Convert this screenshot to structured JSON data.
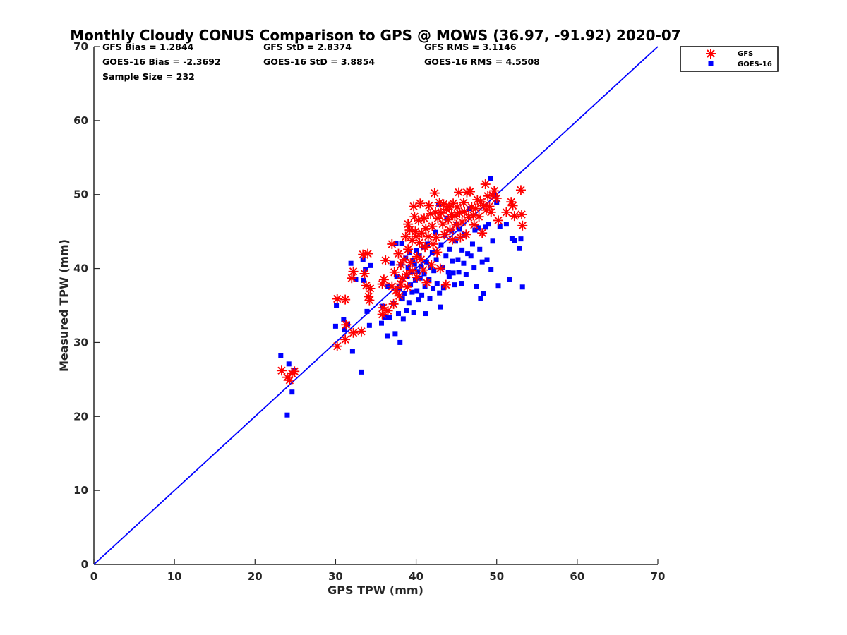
{
  "chart_data": {
    "type": "scatter",
    "title": "Monthly Cloudy CONUS Comparison to GPS @ MOWS (36.97, -91.92) 2020-07",
    "xlabel": "GPS TPW (mm)",
    "ylabel": "Measured TPW (mm)",
    "xlim": [
      0,
      70
    ],
    "ylim": [
      0,
      70
    ],
    "xticks": [
      "0",
      "10",
      "20",
      "30",
      "40",
      "50",
      "60",
      "70"
    ],
    "yticks": [
      "0",
      "10",
      "20",
      "30",
      "40",
      "50",
      "60",
      "70"
    ],
    "grid": false,
    "legend_position": "top-right outside",
    "stats": [
      [
        "GFS Bias = 1.2844",
        "GFS StD = 2.8374",
        "GFS RMS = 3.1146"
      ],
      [
        "GOES-16 Bias = -2.3692",
        "GOES-16 StD = 3.8854",
        "GOES-16 RMS = 4.5508"
      ],
      [
        "Sample Size = 232"
      ]
    ],
    "reference_line": {
      "x": [
        0,
        70
      ],
      "y": [
        0,
        70
      ],
      "color": "#0000ff"
    },
    "series": [
      {
        "name": "GFS",
        "marker": "asterisk",
        "color": "#ff0000",
        "points": [
          [
            23.3,
            26.2
          ],
          [
            24.0,
            25.3
          ],
          [
            24.3,
            24.9
          ],
          [
            24.6,
            25.8
          ],
          [
            24.9,
            26.1
          ],
          [
            30.2,
            29.5
          ],
          [
            30.2,
            35.9
          ],
          [
            31.2,
            30.4
          ],
          [
            31.2,
            35.8
          ],
          [
            31.3,
            32.4
          ],
          [
            32.0,
            38.7
          ],
          [
            32.2,
            31.3
          ],
          [
            32.2,
            39.6
          ],
          [
            33.2,
            31.5
          ],
          [
            33.4,
            41.9
          ],
          [
            33.6,
            39.3
          ],
          [
            33.8,
            37.7
          ],
          [
            34.0,
            42.0
          ],
          [
            34.1,
            36.2
          ],
          [
            34.2,
            35.7
          ],
          [
            34.3,
            37.3
          ],
          [
            35.8,
            37.9
          ],
          [
            35.8,
            33.8
          ],
          [
            35.9,
            34.7
          ],
          [
            36.0,
            38.5
          ],
          [
            36.2,
            41.1
          ],
          [
            36.5,
            34.3
          ],
          [
            37.0,
            43.3
          ],
          [
            37.0,
            37.6
          ],
          [
            37.2,
            35.2
          ],
          [
            37.3,
            39.5
          ],
          [
            37.5,
            37.0
          ],
          [
            37.8,
            42.0
          ],
          [
            37.9,
            36.3
          ],
          [
            38.1,
            40.5
          ],
          [
            38.1,
            37.9
          ],
          [
            38.3,
            38.7
          ],
          [
            38.5,
            41.2
          ],
          [
            38.7,
            44.3
          ],
          [
            38.8,
            39.2
          ],
          [
            38.9,
            37.5
          ],
          [
            39.0,
            46.0
          ],
          [
            39.0,
            42.6
          ],
          [
            39.2,
            45.2
          ],
          [
            39.3,
            40.8
          ],
          [
            39.5,
            43.8
          ],
          [
            39.5,
            39.7
          ],
          [
            39.7,
            48.4
          ],
          [
            39.8,
            47.0
          ],
          [
            39.9,
            45.0
          ],
          [
            40.0,
            44.3
          ],
          [
            40.1,
            41.6
          ],
          [
            40.1,
            38.8
          ],
          [
            40.3,
            46.5
          ],
          [
            40.4,
            43.5
          ],
          [
            40.5,
            48.8
          ],
          [
            40.6,
            41.2
          ],
          [
            40.7,
            44.8
          ],
          [
            40.9,
            39.8
          ],
          [
            41.0,
            46.8
          ],
          [
            41.1,
            42.9
          ],
          [
            41.2,
            45.4
          ],
          [
            41.3,
            38.1
          ],
          [
            41.5,
            44.3
          ],
          [
            41.6,
            48.5
          ],
          [
            41.8,
            47.4
          ],
          [
            41.9,
            40.5
          ],
          [
            42.0,
            45.7
          ],
          [
            42.1,
            43.3
          ],
          [
            42.3,
            50.2
          ],
          [
            42.4,
            47.6
          ],
          [
            42.5,
            44.2
          ],
          [
            42.6,
            42.2
          ],
          [
            42.7,
            46.8
          ],
          [
            42.9,
            48.9
          ],
          [
            43.0,
            40.0
          ],
          [
            43.1,
            47.5
          ],
          [
            43.3,
            46.0
          ],
          [
            43.4,
            48.7
          ],
          [
            43.5,
            44.6
          ],
          [
            43.7,
            37.8
          ],
          [
            43.8,
            48.0
          ],
          [
            44.0,
            46.6
          ],
          [
            44.1,
            48.4
          ],
          [
            44.2,
            45.2
          ],
          [
            44.4,
            47.3
          ],
          [
            44.5,
            43.9
          ],
          [
            44.6,
            48.8
          ],
          [
            44.8,
            47.1
          ],
          [
            45.0,
            45.9
          ],
          [
            45.1,
            48.3
          ],
          [
            45.3,
            50.3
          ],
          [
            45.4,
            47.5
          ],
          [
            45.5,
            44.2
          ],
          [
            45.7,
            46.3
          ],
          [
            45.9,
            48.9
          ],
          [
            46.0,
            47.7
          ],
          [
            46.2,
            44.6
          ],
          [
            46.3,
            50.3
          ],
          [
            46.5,
            46.9
          ],
          [
            46.7,
            50.4
          ],
          [
            46.9,
            48.3
          ],
          [
            47.1,
            47.2
          ],
          [
            47.2,
            45.9
          ],
          [
            47.4,
            48.1
          ],
          [
            47.6,
            49.3
          ],
          [
            47.8,
            47.0
          ],
          [
            48.0,
            49.0
          ],
          [
            48.2,
            44.8
          ],
          [
            48.4,
            48.5
          ],
          [
            48.6,
            51.4
          ],
          [
            48.7,
            47.9
          ],
          [
            48.9,
            49.8
          ],
          [
            49.1,
            48.4
          ],
          [
            49.3,
            47.6
          ],
          [
            49.5,
            49.9
          ],
          [
            49.7,
            50.5
          ],
          [
            50.0,
            49.5
          ],
          [
            50.2,
            46.5
          ],
          [
            51.2,
            47.6
          ],
          [
            51.8,
            49.0
          ],
          [
            52.0,
            48.5
          ],
          [
            52.2,
            47.1
          ],
          [
            53.0,
            50.6
          ],
          [
            53.1,
            47.3
          ],
          [
            53.2,
            45.8
          ]
        ]
      },
      {
        "name": "GOES-16",
        "marker": "square",
        "color": "#0000ff",
        "points": [
          [
            23.2,
            28.2
          ],
          [
            24.0,
            20.2
          ],
          [
            24.2,
            27.1
          ],
          [
            24.6,
            23.3
          ],
          [
            24.8,
            26.2
          ],
          [
            30.0,
            32.2
          ],
          [
            30.1,
            35.0
          ],
          [
            31.0,
            33.1
          ],
          [
            31.1,
            31.7
          ],
          [
            31.5,
            32.5
          ],
          [
            31.9,
            40.7
          ],
          [
            32.1,
            28.8
          ],
          [
            32.5,
            38.5
          ],
          [
            33.2,
            26.0
          ],
          [
            33.4,
            41.2
          ],
          [
            33.5,
            38.4
          ],
          [
            33.7,
            39.9
          ],
          [
            33.9,
            34.2
          ],
          [
            34.2,
            32.3
          ],
          [
            34.3,
            40.4
          ],
          [
            35.7,
            32.6
          ],
          [
            35.8,
            34.9
          ],
          [
            36.1,
            33.4
          ],
          [
            36.4,
            30.9
          ],
          [
            36.5,
            37.6
          ],
          [
            36.7,
            33.4
          ],
          [
            37.0,
            40.7
          ],
          [
            37.2,
            35.3
          ],
          [
            37.4,
            31.2
          ],
          [
            37.5,
            43.4
          ],
          [
            37.6,
            38.9
          ],
          [
            37.8,
            33.9
          ],
          [
            37.9,
            37.2
          ],
          [
            38.0,
            30.0
          ],
          [
            38.1,
            40.5
          ],
          [
            38.2,
            43.4
          ],
          [
            38.3,
            35.9
          ],
          [
            38.4,
            33.2
          ],
          [
            38.5,
            36.6
          ],
          [
            38.7,
            41.4
          ],
          [
            38.8,
            34.3
          ],
          [
            38.9,
            38.9
          ],
          [
            39.0,
            40.2
          ],
          [
            39.1,
            35.4
          ],
          [
            39.2,
            42.1
          ],
          [
            39.3,
            37.8
          ],
          [
            39.4,
            39.6
          ],
          [
            39.5,
            36.8
          ],
          [
            39.6,
            41.1
          ],
          [
            39.7,
            34.0
          ],
          [
            39.8,
            40.6
          ],
          [
            39.9,
            38.4
          ],
          [
            40.0,
            42.4
          ],
          [
            40.1,
            37.0
          ],
          [
            40.2,
            39.6
          ],
          [
            40.3,
            35.8
          ],
          [
            40.4,
            41.8
          ],
          [
            40.5,
            38.7
          ],
          [
            40.6,
            40.3
          ],
          [
            40.7,
            36.4
          ],
          [
            40.9,
            42.9
          ],
          [
            41.0,
            39.3
          ],
          [
            41.1,
            37.6
          ],
          [
            41.2,
            33.9
          ],
          [
            41.3,
            40.9
          ],
          [
            41.4,
            43.3
          ],
          [
            41.6,
            38.5
          ],
          [
            41.7,
            36.0
          ],
          [
            41.8,
            40.1
          ],
          [
            42.0,
            42.1
          ],
          [
            42.1,
            37.3
          ],
          [
            42.2,
            39.7
          ],
          [
            42.4,
            44.9
          ],
          [
            42.5,
            41.2
          ],
          [
            42.6,
            38.0
          ],
          [
            42.8,
            48.7
          ],
          [
            42.9,
            36.7
          ],
          [
            43.0,
            34.8
          ],
          [
            43.1,
            43.2
          ],
          [
            43.3,
            40.2
          ],
          [
            43.4,
            37.4
          ],
          [
            43.6,
            44.5
          ],
          [
            43.7,
            41.7
          ],
          [
            43.8,
            46.8
          ],
          [
            44.0,
            39.5
          ],
          [
            44.1,
            38.9
          ],
          [
            44.2,
            42.6
          ],
          [
            44.4,
            45.1
          ],
          [
            44.5,
            41.0
          ],
          [
            44.6,
            39.4
          ],
          [
            44.8,
            37.8
          ],
          [
            44.9,
            43.7
          ],
          [
            45.0,
            46.0
          ],
          [
            45.2,
            41.2
          ],
          [
            45.3,
            39.5
          ],
          [
            45.4,
            45.3
          ],
          [
            45.6,
            38.0
          ],
          [
            45.7,
            42.5
          ],
          [
            45.9,
            40.7
          ],
          [
            46.0,
            44.6
          ],
          [
            46.2,
            39.2
          ],
          [
            46.4,
            42.0
          ],
          [
            46.6,
            48.1
          ],
          [
            46.8,
            41.7
          ],
          [
            47.0,
            43.3
          ],
          [
            47.2,
            40.1
          ],
          [
            47.3,
            45.2
          ],
          [
            47.5,
            37.6
          ],
          [
            47.7,
            45.5
          ],
          [
            47.9,
            42.6
          ],
          [
            48.0,
            36.0
          ],
          [
            48.2,
            40.9
          ],
          [
            48.4,
            36.6
          ],
          [
            48.6,
            45.6
          ],
          [
            48.8,
            41.2
          ],
          [
            49.0,
            46.0
          ],
          [
            49.2,
            52.2
          ],
          [
            49.3,
            39.9
          ],
          [
            49.5,
            43.7
          ],
          [
            49.8,
            49.9
          ],
          [
            50.0,
            48.9
          ],
          [
            50.2,
            37.7
          ],
          [
            50.4,
            45.7
          ],
          [
            51.2,
            46.0
          ],
          [
            51.6,
            38.5
          ],
          [
            51.9,
            44.1
          ],
          [
            52.2,
            43.8
          ],
          [
            52.8,
            42.7
          ],
          [
            53.0,
            44.0
          ],
          [
            53.2,
            37.5
          ]
        ]
      }
    ]
  }
}
